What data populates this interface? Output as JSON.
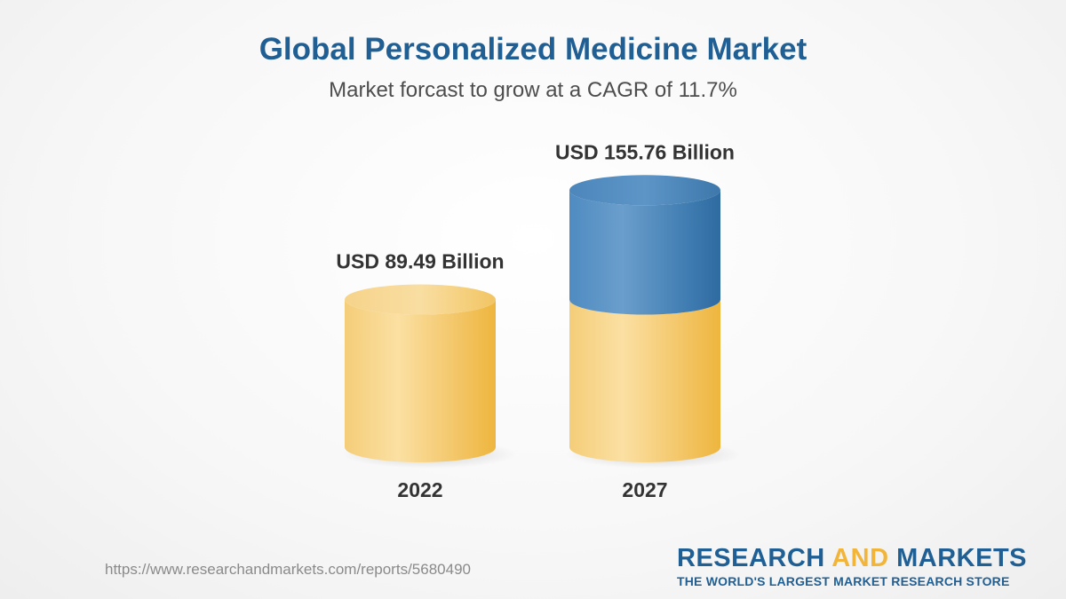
{
  "header": {
    "title": "Global Personalized Medicine Market",
    "subtitle": "Market forcast to grow at a CAGR of 11.7%"
  },
  "chart_data": {
    "type": "bar",
    "style": "cylinder",
    "categories": [
      "2022",
      "2027"
    ],
    "values": [
      89.49,
      155.76
    ],
    "unit": "USD Billion",
    "data_labels": [
      "USD 89.49 Billion",
      "USD 155.76 Billion"
    ],
    "title": "Global Personalized Medicine Market",
    "subtitle": "Market forcast to grow at a CAGR of 11.7%",
    "xlabel": "",
    "ylabel": "",
    "grid": false,
    "colors": {
      "base": "#f2c25c",
      "increase": "#3f7db3"
    }
  },
  "footer": {
    "url": "https://www.researchandmarkets.com/reports/5680490",
    "brand_part1": "RESEARCH ",
    "brand_part2": "AND",
    "brand_part3": " MARKETS",
    "tagline": "THE WORLD'S LARGEST MARKET RESEARCH STORE"
  }
}
